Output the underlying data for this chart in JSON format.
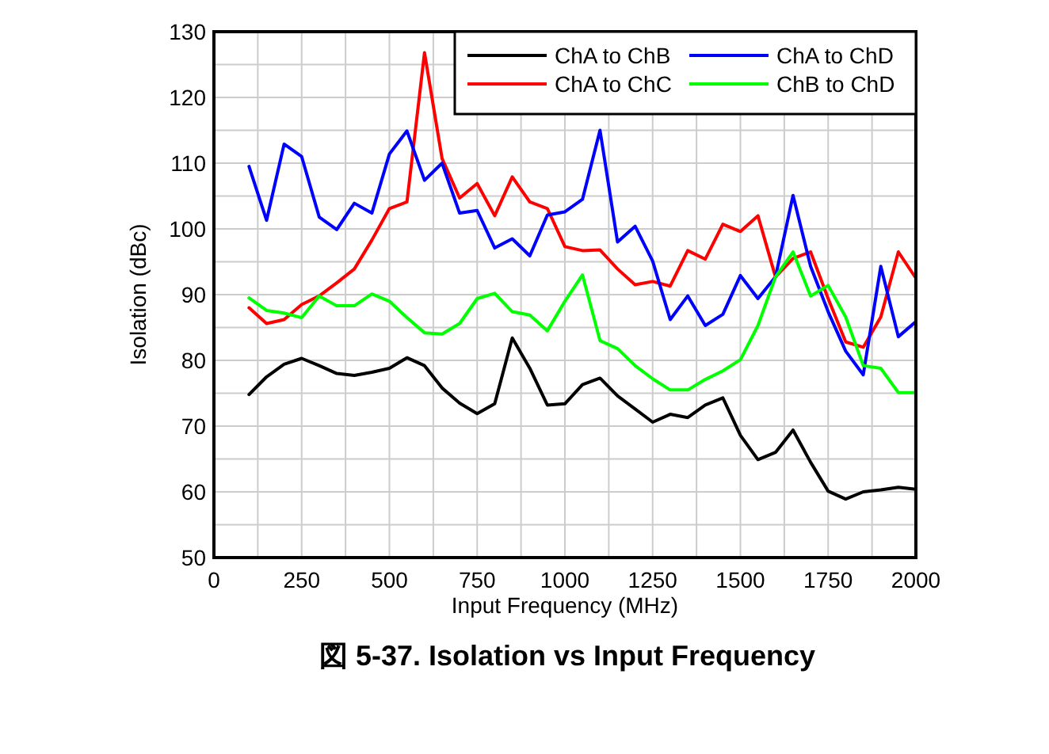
{
  "chart_data": {
    "type": "line",
    "title": "図 5-37. Isolation vs Input Frequency",
    "xlabel": "Input Frequency (MHz)",
    "ylabel": "Isolation (dBc)",
    "x": [
      100,
      150,
      200,
      250,
      300,
      350,
      400,
      450,
      500,
      550,
      600,
      650,
      700,
      750,
      800,
      850,
      900,
      950,
      1000,
      1050,
      1100,
      1150,
      1200,
      1250,
      1300,
      1350,
      1400,
      1450,
      1500,
      1550,
      1600,
      1650,
      1700,
      1750,
      1800,
      1850,
      1900,
      1950,
      2000
    ],
    "series": [
      {
        "name": "ChA to ChB",
        "color": "#000000",
        "values": [
          74.8,
          77.5,
          79.4,
          80.3,
          79.2,
          78.0,
          77.7,
          78.2,
          78.8,
          80.4,
          79.2,
          75.8,
          73.5,
          71.9,
          73.4,
          83.4,
          78.8,
          73.2,
          73.4,
          76.3,
          77.3,
          74.6,
          72.6,
          70.6,
          71.8,
          71.3,
          73.2,
          74.3,
          68.6,
          64.9,
          66.0,
          69.4,
          64.5,
          60.1,
          58.9,
          60.0,
          60.3,
          60.7,
          60.4
        ]
      },
      {
        "name": "ChA to ChC",
        "color": "#ff0000",
        "values": [
          88.0,
          85.6,
          86.2,
          88.5,
          89.8,
          91.8,
          93.9,
          98.3,
          103.1,
          104.1,
          126.8,
          110.7,
          104.7,
          106.9,
          102.0,
          107.9,
          104.1,
          103.1,
          97.3,
          96.7,
          96.8,
          93.9,
          91.5,
          92.0,
          91.3,
          96.7,
          95.4,
          100.7,
          99.6,
          102.0,
          92.7,
          95.5,
          96.5,
          89.4,
          82.8,
          82.0,
          86.6,
          96.5,
          92.5
        ]
      },
      {
        "name": "ChA to ChD",
        "color": "#0000ff",
        "values": [
          109.5,
          101.3,
          112.9,
          111.0,
          101.8,
          99.9,
          103.9,
          102.4,
          111.4,
          114.9,
          107.4,
          110.0,
          102.4,
          102.8,
          97.1,
          98.5,
          95.9,
          102.1,
          102.6,
          104.5,
          115.0,
          98.0,
          100.4,
          95.1,
          86.2,
          89.8,
          85.3,
          87.0,
          92.9,
          89.4,
          92.7,
          105.1,
          94.3,
          87.4,
          81.4,
          77.8,
          94.3,
          83.6,
          85.9
        ]
      },
      {
        "name": "ChB to ChD",
        "color": "#00ff00",
        "values": [
          89.5,
          87.6,
          87.2,
          86.5,
          89.8,
          88.3,
          88.3,
          90.1,
          89.0,
          86.5,
          84.2,
          84.0,
          85.6,
          89.4,
          90.2,
          87.4,
          86.9,
          84.5,
          89.0,
          93.0,
          83.0,
          81.8,
          79.2,
          77.2,
          75.5,
          75.5,
          77.1,
          78.4,
          80.1,
          85.3,
          92.7,
          96.5,
          89.8,
          91.4,
          86.6,
          79.2,
          78.8,
          75.1,
          75.1
        ]
      }
    ],
    "xlim": [
      0,
      2000
    ],
    "xticks": [
      0,
      {
        "value": 125,
        "label": null
      },
      250,
      {
        "value": 375,
        "label": null
      },
      500,
      {
        "value": 625,
        "label": null
      },
      750,
      {
        "value": 875,
        "label": null
      },
      1000,
      {
        "value": 1125,
        "label": null
      },
      1250,
      {
        "value": 1375,
        "label": null
      },
      1500,
      {
        "value": 1625,
        "label": null
      },
      1750,
      {
        "value": 1875,
        "label": null
      },
      2000
    ],
    "ylim": [
      50,
      130
    ],
    "yticks": [
      50,
      {
        "value": 55,
        "label": null
      },
      60,
      {
        "value": 65,
        "label": null
      },
      70,
      {
        "value": 75,
        "label": null
      },
      80,
      {
        "value": 85,
        "label": null
      },
      90,
      {
        "value": 95,
        "label": null
      },
      100,
      {
        "value": 105,
        "label": null
      },
      110,
      {
        "value": 115,
        "label": null
      },
      120,
      {
        "value": 125,
        "label": null
      },
      130
    ],
    "grid": true,
    "legend": "top right",
    "marker": "none",
    "line_style": "solid"
  }
}
